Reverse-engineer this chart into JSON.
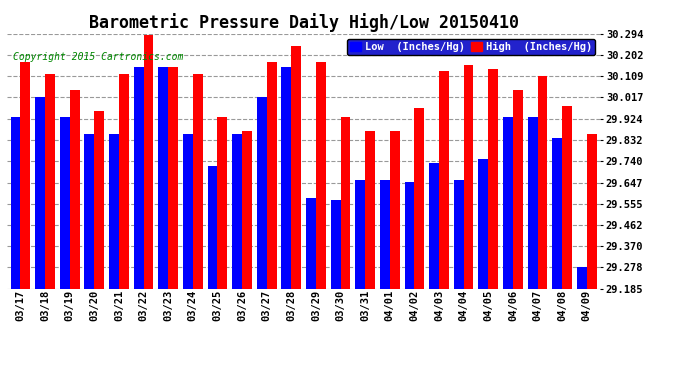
{
  "title": "Barometric Pressure Daily High/Low 20150410",
  "copyright": "Copyright 2015 Cartronics.com",
  "legend_low": "Low  (Inches/Hg)",
  "legend_high": "High  (Inches/Hg)",
  "dates": [
    "03/17",
    "03/18",
    "03/19",
    "03/20",
    "03/21",
    "03/22",
    "03/23",
    "03/24",
    "03/25",
    "03/26",
    "03/27",
    "03/28",
    "03/29",
    "03/30",
    "03/31",
    "04/01",
    "04/02",
    "04/03",
    "04/04",
    "04/05",
    "04/06",
    "04/07",
    "04/08",
    "04/09"
  ],
  "high": [
    30.17,
    30.12,
    30.05,
    29.96,
    30.12,
    30.29,
    30.15,
    30.12,
    29.93,
    29.87,
    30.17,
    30.24,
    30.17,
    29.93,
    29.87,
    29.87,
    29.97,
    30.13,
    30.16,
    30.14,
    30.05,
    30.11,
    29.98,
    29.86
  ],
  "low": [
    29.93,
    30.02,
    29.93,
    29.86,
    29.86,
    30.15,
    30.15,
    29.86,
    29.72,
    29.86,
    30.02,
    30.15,
    29.58,
    29.57,
    29.66,
    29.66,
    29.65,
    29.73,
    29.66,
    29.75,
    29.93,
    29.93,
    29.84,
    29.28
  ],
  "ymin": 29.185,
  "ymax": 30.294,
  "yticks": [
    29.185,
    29.278,
    29.37,
    29.462,
    29.555,
    29.647,
    29.74,
    29.832,
    29.924,
    30.017,
    30.109,
    30.202,
    30.294
  ],
  "bar_color_low": "#0000ff",
  "bar_color_high": "#ff0000",
  "bg_color": "#ffffff",
  "grid_color": "#999999",
  "title_fontsize": 12,
  "copyright_fontsize": 7,
  "legend_fontsize": 7.5
}
